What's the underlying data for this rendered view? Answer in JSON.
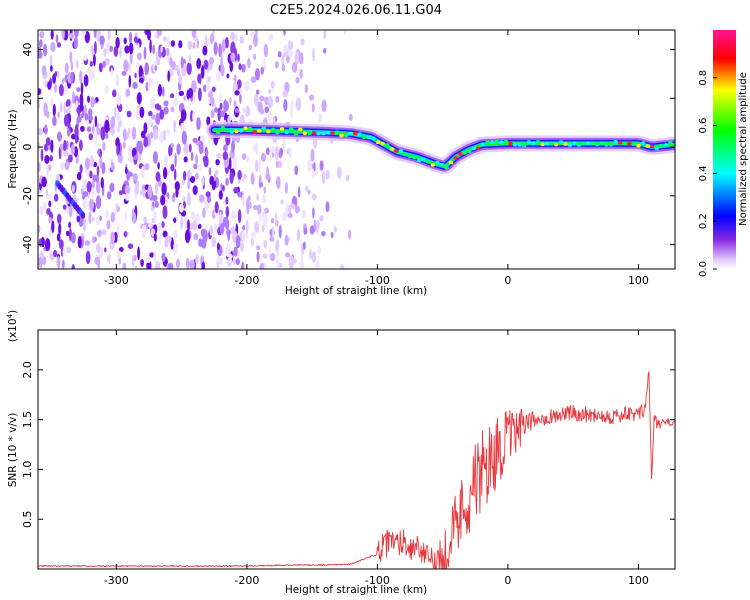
{
  "chart_data": [
    {
      "type": "heatmap",
      "title": "C2E5.2024.026.06.11.G04",
      "xlabel": "Height of straight line (km)",
      "ylabel": "Frequency (Hz)",
      "xlim": [
        -360,
        128
      ],
      "ylim": [
        -50,
        48
      ],
      "xticks": [
        -300,
        -200,
        -100,
        0,
        100
      ],
      "yticks": [
        -40,
        -20,
        0,
        20,
        40
      ],
      "colorbar": {
        "label": "Normalized spectral amplitude",
        "range": [
          0,
          1
        ],
        "ticks": [
          0.0,
          0.2,
          0.4,
          0.6,
          0.8
        ],
        "colormap": [
          "#ffffff",
          "#e0c8ff",
          "#8a2be2",
          "#0000ff",
          "#00ffff",
          "#00ff00",
          "#ffff00",
          "#ff0000",
          "#ff1493"
        ]
      },
      "signal_track": [
        {
          "x": -225,
          "y": 7
        },
        {
          "x": -200,
          "y": 7
        },
        {
          "x": -170,
          "y": 6.5
        },
        {
          "x": -140,
          "y": 6
        },
        {
          "x": -120,
          "y": 5.5
        },
        {
          "x": -105,
          "y": 4
        },
        {
          "x": -95,
          "y": 1
        },
        {
          "x": -85,
          "y": -2
        },
        {
          "x": -70,
          "y": -4
        },
        {
          "x": -55,
          "y": -7
        },
        {
          "x": -48,
          "y": -8
        },
        {
          "x": -40,
          "y": -4
        },
        {
          "x": -30,
          "y": -1
        },
        {
          "x": -20,
          "y": 1
        },
        {
          "x": 0,
          "y": 1.5
        },
        {
          "x": 40,
          "y": 1.5
        },
        {
          "x": 80,
          "y": 1.5
        },
        {
          "x": 100,
          "y": 1.5
        },
        {
          "x": 110,
          "y": 0
        },
        {
          "x": 128,
          "y": 1
        }
      ]
    },
    {
      "type": "line",
      "xlabel": "Height of straight line (km)",
      "ylabel": "SNR (10 * v/v)",
      "multiplier": "(x10",
      "multiplier_exp": "4",
      "multiplier_close": ")",
      "xlim": [
        -360,
        128
      ],
      "ylim": [
        0,
        2.4
      ],
      "xticks": [
        -300,
        -200,
        -100,
        0,
        100
      ],
      "yticks": [
        0.5,
        1.0,
        1.5,
        2.0
      ],
      "ytick_labels": [
        "0.5",
        "1.0",
        "1.5",
        "2.0"
      ],
      "series": [
        {
          "color": "#e8383d",
          "x": [
            -360,
            -340,
            -320,
            -300,
            -280,
            -260,
            -240,
            -220,
            -200,
            -180,
            -160,
            -140,
            -120,
            -110,
            -100,
            -95,
            -90,
            -85,
            -80,
            -75,
            -70,
            -65,
            -60,
            -55,
            -50,
            -45,
            -40,
            -35,
            -30,
            -25,
            -20,
            -15,
            -10,
            -5,
            0,
            5,
            10,
            15,
            20,
            30,
            40,
            50,
            60,
            70,
            80,
            90,
            100,
            105,
            108,
            110,
            112,
            115,
            120,
            128
          ],
          "y": [
            0.03,
            0.03,
            0.03,
            0.03,
            0.03,
            0.03,
            0.03,
            0.03,
            0.03,
            0.035,
            0.04,
            0.04,
            0.05,
            0.1,
            0.15,
            0.22,
            0.28,
            0.25,
            0.3,
            0.2,
            0.25,
            0.15,
            0.1,
            0.08,
            0.12,
            0.3,
            0.45,
            0.6,
            0.75,
            0.85,
            0.95,
            1.05,
            1.15,
            1.25,
            1.3,
            1.35,
            1.42,
            1.45,
            1.5,
            1.53,
            1.55,
            1.57,
            1.55,
            1.55,
            1.53,
            1.55,
            1.55,
            1.6,
            2.0,
            0.9,
            1.5,
            1.45,
            1.47,
            1.47
          ],
          "noise_envelope": [
            {
              "x": -100,
              "amp": 0.15
            },
            {
              "x": -60,
              "amp": 0.12
            },
            {
              "x": -40,
              "amp": 0.35
            },
            {
              "x": -20,
              "amp": 0.45
            },
            {
              "x": 0,
              "amp": 0.3
            },
            {
              "x": 20,
              "amp": 0.08
            },
            {
              "x": 100,
              "amp": 0.08
            },
            {
              "x": 128,
              "amp": 0.03
            }
          ]
        }
      ]
    }
  ]
}
